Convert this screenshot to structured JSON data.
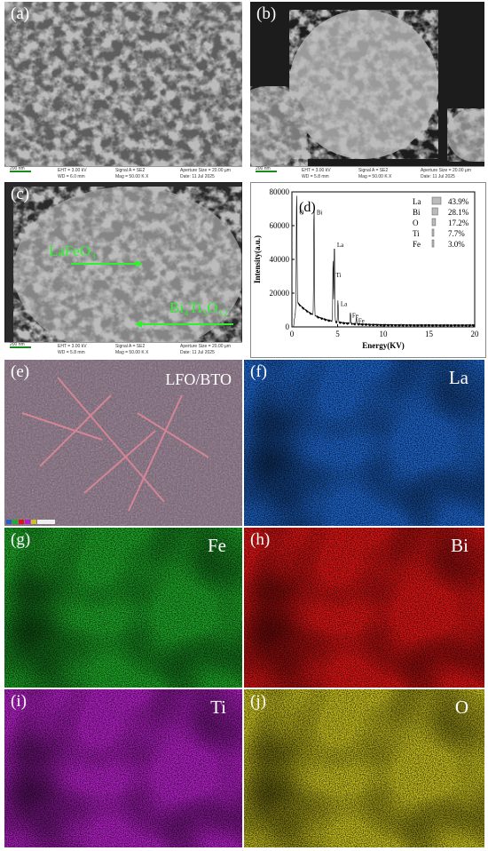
{
  "panels": {
    "a": {
      "label": "(a)",
      "scalebar": "200 nm",
      "eht": "EHT = 3.00 kV",
      "wd": "WD = 6.0 mm",
      "signal": "Signal A = SE2",
      "mag": "Mag = 50.00 K X",
      "aperture": "Aperture Size = 20.00 µm",
      "date": "Date: 11 Jul 2025"
    },
    "b": {
      "label": "(b)",
      "scalebar": "200 nm",
      "eht": "EHT = 3.00 kV",
      "wd": "WD = 5.8 mm",
      "signal": "Signal A = SE2",
      "mag": "Mag = 50.00 K X",
      "aperture": "Aperture Size = 20.00 µm",
      "date": "Date: 11 Jul 2025"
    },
    "c": {
      "label": "(c)",
      "scalebar": "200 nm",
      "eht": "EHT = 3.00 kV",
      "wd": "WD = 5.8 mm",
      "signal": "Signal A = SE2",
      "mag": "Mag = 50.00 K X",
      "aperture": "Aperture Size = 20.00 µm",
      "date": "Date: 11 Jul 2025",
      "anno1": "LaFeO₃",
      "anno2": "Bi₄Ti₃O₁₂"
    },
    "d": {
      "label": "(d)"
    },
    "e": {
      "label": "(e)",
      "element": "LFO/BTO"
    },
    "f": {
      "label": "(f)",
      "element": "La"
    },
    "g": {
      "label": "(g)",
      "element": "Fe"
    },
    "h": {
      "label": "(h)",
      "element": "Bi"
    },
    "i": {
      "label": "(i)",
      "element": "Ti"
    },
    "j": {
      "label": "(j)",
      "element": "O"
    }
  },
  "colors": {
    "La": "#1f63c9",
    "Fe": "#1fae2a",
    "Bi": "#e01414",
    "Ti": "#b41ec8",
    "O": "#c9c220",
    "arrow": "#2df22d"
  },
  "chart_data": {
    "type": "line",
    "xlabel": "Energy(KV)",
    "ylabel": "Intensity(a.u.)",
    "xlim": [
      0,
      20
    ],
    "ylim": [
      0,
      80000
    ],
    "xticks": [
      0,
      5,
      10,
      15,
      20
    ],
    "yticks": [
      0,
      20000,
      40000,
      60000,
      80000
    ],
    "peaks": [
      {
        "element": "O",
        "x": 0.52,
        "y": 67000
      },
      {
        "element": "Bi",
        "x": 2.42,
        "y": 67000
      },
      {
        "element": "La",
        "x": 4.65,
        "y": 48000
      },
      {
        "element": "Ti",
        "x": 4.51,
        "y": 38000
      },
      {
        "element": "La",
        "x": 5.04,
        "y": 13000
      },
      {
        "element": "Fe",
        "x": 6.4,
        "y": 7000
      },
      {
        "element": "Fe",
        "x": 7.06,
        "y": 4000
      }
    ],
    "legend": [
      {
        "element": "La",
        "pct": "43.9%"
      },
      {
        "element": "Bi",
        "pct": "28.1%"
      },
      {
        "element": "O",
        "pct": "17.2%"
      },
      {
        "element": "Ti",
        "pct": "7.7%"
      },
      {
        "element": "Fe",
        "pct": "3.0%"
      }
    ]
  }
}
